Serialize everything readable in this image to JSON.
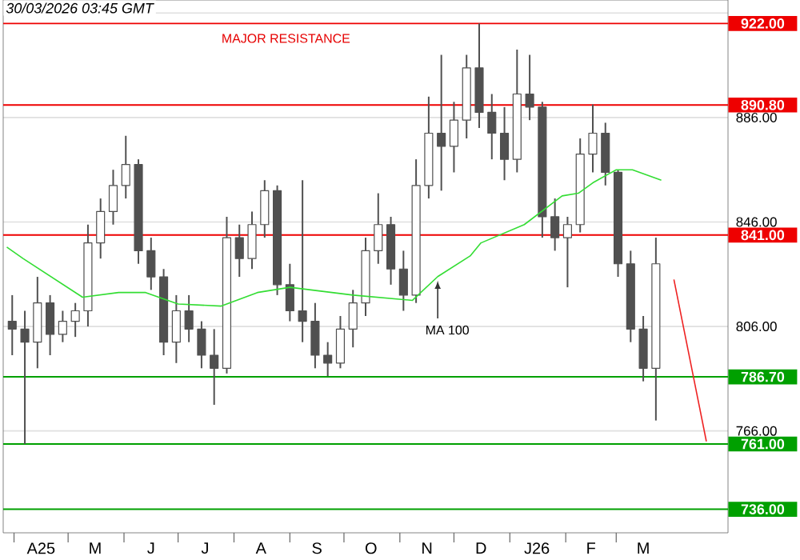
{
  "chart_data": {
    "type": "candlestick",
    "title": "30/03/2026 03:45 GMT",
    "x": [
      "2025-03-31",
      "2025-04-07",
      "2025-04-14",
      "2025-04-21",
      "2025-04-28",
      "2025-05-05",
      "2025-05-12",
      "2025-05-19",
      "2025-05-26",
      "2025-06-02",
      "2025-06-09",
      "2025-06-16",
      "2025-06-23",
      "2025-06-30",
      "2025-07-07",
      "2025-07-14",
      "2025-07-21",
      "2025-07-28",
      "2025-08-04",
      "2025-08-11",
      "2025-08-18",
      "2025-08-25",
      "2025-09-01",
      "2025-09-08",
      "2025-09-15",
      "2025-09-22",
      "2025-09-29",
      "2025-10-06",
      "2025-10-13",
      "2025-10-20",
      "2025-10-27",
      "2025-11-03",
      "2025-11-10",
      "2025-11-17",
      "2025-11-24",
      "2025-12-01",
      "2025-12-08",
      "2025-12-15",
      "2025-12-22",
      "2025-12-29",
      "2026-01-05",
      "2026-01-12",
      "2026-01-19",
      "2026-01-26",
      "2026-02-02",
      "2026-02-09",
      "2026-02-16",
      "2026-02-23",
      "2026-03-02",
      "2026-03-09",
      "2026-03-16",
      "2026-03-23"
    ],
    "ohlc": [
      [
        808,
        818,
        795,
        805
      ],
      [
        805,
        812,
        761,
        800
      ],
      [
        800,
        825,
        790,
        815
      ],
      [
        815,
        818,
        795,
        803
      ],
      [
        803,
        812,
        800,
        808
      ],
      [
        808,
        815,
        802,
        812
      ],
      [
        812,
        845,
        806,
        838
      ],
      [
        838,
        855,
        832,
        850
      ],
      [
        850,
        866,
        845,
        860
      ],
      [
        860,
        879,
        855,
        868
      ],
      [
        868,
        870,
        830,
        835
      ],
      [
        835,
        840,
        820,
        825
      ],
      [
        825,
        828,
        795,
        800
      ],
      [
        800,
        818,
        792,
        812
      ],
      [
        812,
        818,
        800,
        805
      ],
      [
        805,
        808,
        790,
        795
      ],
      [
        795,
        805,
        776,
        790
      ],
      [
        790,
        848,
        788,
        840
      ],
      [
        840,
        845,
        825,
        832
      ],
      [
        832,
        850,
        828,
        845
      ],
      [
        845,
        862,
        840,
        858
      ],
      [
        858,
        860,
        818,
        822
      ],
      [
        822,
        830,
        808,
        812
      ],
      [
        812,
        862,
        800,
        808
      ],
      [
        808,
        815,
        790,
        795
      ],
      [
        795,
        800,
        787,
        792
      ],
      [
        792,
        810,
        790,
        805
      ],
      [
        805,
        820,
        798,
        815
      ],
      [
        815,
        840,
        810,
        835
      ],
      [
        835,
        857,
        830,
        845
      ],
      [
        845,
        848,
        822,
        828
      ],
      [
        828,
        835,
        812,
        818
      ],
      [
        818,
        870,
        815,
        860
      ],
      [
        860,
        894,
        855,
        880
      ],
      [
        880,
        910,
        858,
        875
      ],
      [
        875,
        892,
        865,
        885
      ],
      [
        885,
        910,
        878,
        905
      ],
      [
        905,
        922,
        882,
        888
      ],
      [
        888,
        895,
        870,
        880
      ],
      [
        880,
        890,
        862,
        870
      ],
      [
        870,
        912,
        865,
        895
      ],
      [
        895,
        910,
        885,
        890
      ],
      [
        890,
        892,
        840,
        848
      ],
      [
        848,
        855,
        835,
        840
      ],
      [
        840,
        848,
        821,
        845
      ],
      [
        845,
        878,
        842,
        872
      ],
      [
        872,
        891,
        865,
        880
      ],
      [
        880,
        884,
        860,
        865
      ],
      [
        865,
        866,
        825,
        830
      ],
      [
        830,
        835,
        800,
        805
      ],
      [
        805,
        810,
        785,
        790
      ],
      [
        790,
        840,
        770,
        830
      ]
    ],
    "color": "#505050",
    "series": [
      {
        "type": "line",
        "name": "MA 100",
        "color": "#33dd33",
        "x": [
          "2025-03-28",
          "2025-04-06",
          "2025-05-09",
          "2025-05-29",
          "2025-06-13",
          "2025-07-01",
          "2025-07-25",
          "2025-08-14",
          "2025-09-01",
          "2025-10-06",
          "2025-11-08",
          "2025-11-22",
          "2025-12-10",
          "2025-12-16",
          "2026-01-09",
          "2026-01-30",
          "2026-02-08",
          "2026-02-16",
          "2026-03-01",
          "2026-03-10",
          "2026-03-26"
        ],
        "values": [
          836.4,
          832,
          817.2,
          819,
          819,
          814.6,
          813.8,
          819,
          821,
          818,
          816,
          825.1,
          833,
          838,
          845,
          856,
          857,
          861,
          866,
          866,
          862
        ]
      },
      {
        "type": "line",
        "color": "#ee2222",
        "x": [
          "2026-04-02",
          "2026-04-20"
        ],
        "values": [
          824,
          762
        ]
      }
    ],
    "ref_lines": [
      {
        "axis": "y",
        "value": 922,
        "label": "922.00",
        "color": "#ee0000"
      },
      {
        "axis": "y",
        "value": 890.8,
        "label": "890.80",
        "color": "#ee0000"
      },
      {
        "axis": "y",
        "value": 841,
        "label": "841.00",
        "color": "#ee0000"
      },
      {
        "axis": "y",
        "value": 786.7,
        "label": "786.70",
        "color": "#00a000"
      },
      {
        "axis": "y",
        "value": 761,
        "label": "761.00",
        "color": "#00a000"
      },
      {
        "axis": "y",
        "value": 736,
        "label": "736.00",
        "color": "#00a000"
      }
    ],
    "annotations": [
      "MAJOR RESISTANCE"
    ],
    "xlim": [
      "2025-03-26",
      "2026-05-02"
    ],
    "ylim": [
      727,
      931
    ],
    "xticks": [
      {
        "value": "2025-04-01",
        "label": null
      },
      {
        "value": "2025-04-16",
        "label": "A25"
      },
      {
        "value": "2025-05-01",
        "label": null
      },
      {
        "value": "2025-05-16",
        "label": "M"
      },
      {
        "value": "2025-06-01",
        "label": null
      },
      {
        "value": "2025-06-16",
        "label": "J"
      },
      {
        "value": "2025-07-01",
        "label": null
      },
      {
        "value": "2025-07-16",
        "label": "J"
      },
      {
        "value": "2025-08-01",
        "label": null
      },
      {
        "value": "2025-08-16",
        "label": "A"
      },
      {
        "value": "2025-09-01",
        "label": null
      },
      {
        "value": "2025-09-16",
        "label": "S"
      },
      {
        "value": "2025-10-01",
        "label": null
      },
      {
        "value": "2025-10-16",
        "label": "O"
      },
      {
        "value": "2025-11-01",
        "label": null
      },
      {
        "value": "2025-11-16",
        "label": "N"
      },
      {
        "value": "2025-12-01",
        "label": null
      },
      {
        "value": "2025-12-16",
        "label": "D"
      },
      {
        "value": "2026-01-01",
        "label": null
      },
      {
        "value": "2026-01-16",
        "label": "J26"
      },
      {
        "value": "2026-02-01",
        "label": null
      },
      {
        "value": "2026-02-15",
        "label": "F"
      },
      {
        "value": "2026-03-01",
        "label": null
      },
      {
        "value": "2026-03-16",
        "label": "M"
      }
    ],
    "yticks": [
      {
        "value": 766,
        "label": "766.00"
      },
      {
        "value": 806,
        "label": "806.00"
      },
      {
        "value": 846,
        "label": "846.00"
      },
      {
        "value": 886,
        "label": "886.00"
      },
      {
        "value": 926,
        "label": null
      }
    ],
    "grid": "y"
  }
}
